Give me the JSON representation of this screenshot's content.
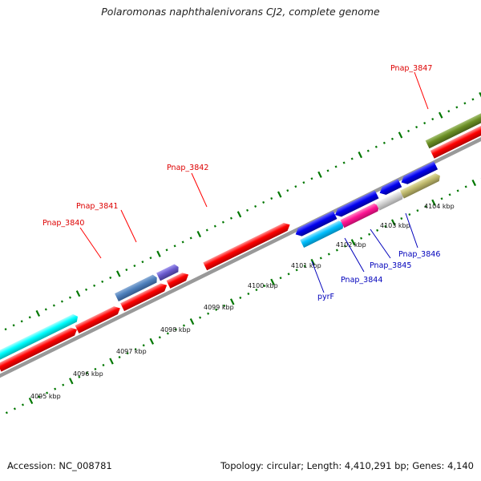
{
  "title": "Polaromonas naphthalenivorans CJ2, complete genome",
  "footer": {
    "accession": "Accession: NC_008781",
    "summary": "Topology: circular; Length: 4,410,291 bp; Genes: 4,140"
  },
  "scale": {
    "tick_labels": [
      "4095 kbp",
      "4096 kbp",
      "4097 kbp",
      "4098 kbp",
      "4099 kbp",
      "4100 kbp",
      "4101 kbp",
      "4102 kbp",
      "4103 kbp",
      "4104 kbp"
    ]
  },
  "gene_labels": {
    "red": [
      "Pnap_3840",
      "Pnap_3841",
      "Pnap_3842",
      "Pnap_3847"
    ],
    "blue": [
      "pyrF",
      "Pnap_3844",
      "Pnap_3845",
      "Pnap_3846"
    ]
  },
  "colors": {
    "forward_cds": "#ff0000",
    "label_red": "#dd0000",
    "label_blue": "#0000bb",
    "backbone": "#999999",
    "tick": "#007700",
    "cyan": "#00ffff",
    "steel_blue": "#4f81bd",
    "slate_blue": "#6a5acd",
    "blue": "#0000dd",
    "deep_sky": "#00bfff",
    "magenta": "#ff1493",
    "light_gray": "#cccccc",
    "khaki": "#bdb76b",
    "olive": "#6b8e23"
  }
}
